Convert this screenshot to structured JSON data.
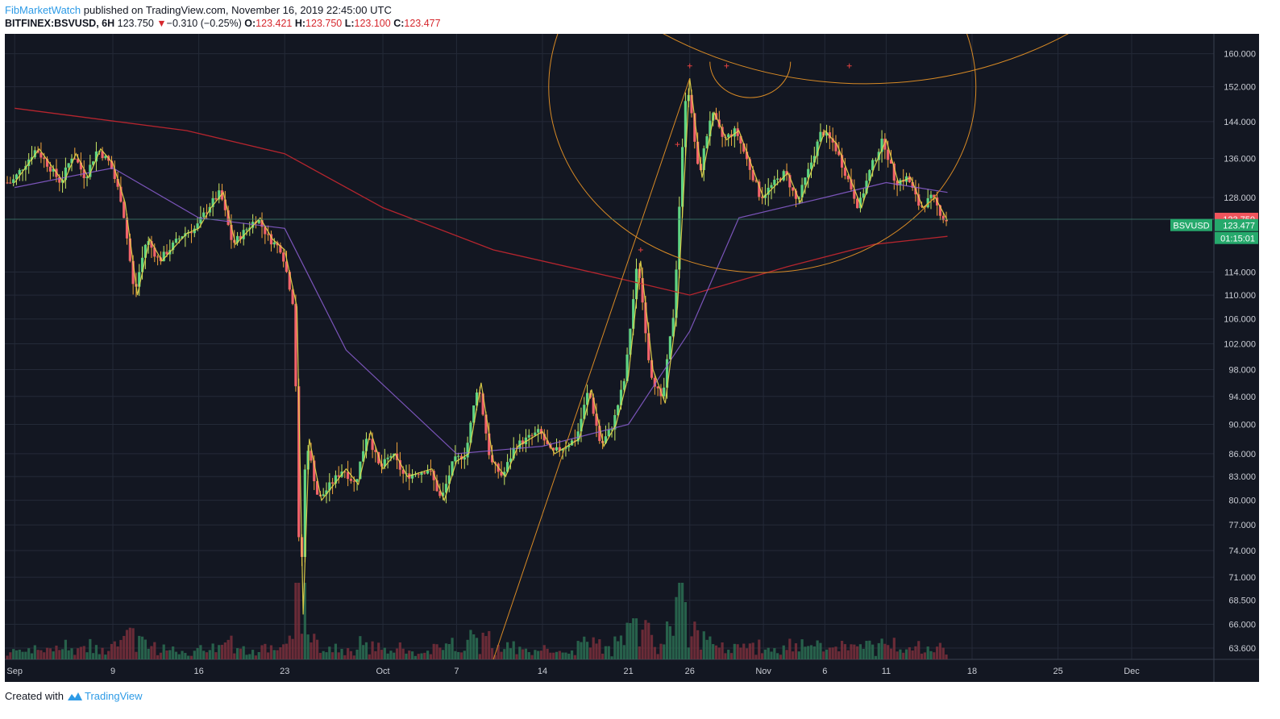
{
  "header": {
    "author": "FibMarketWatch",
    "published_text": "published on TradingView.com, November 16, 2019 22:45:00 UTC",
    "symbol": "BITFINEX:BSVUSD, 6H",
    "last": "123.750",
    "arrow": "▼",
    "change": "−0.310 (−0.25%)",
    "o_label": "O:",
    "o": "123.421",
    "h_label": "H:",
    "h": "123.750",
    "l_label": "L:",
    "l": "123.100",
    "c_label": "C:",
    "c": "123.477"
  },
  "footer": {
    "created_with": "Created with",
    "brand": "TradingView"
  },
  "colors": {
    "background": "#131722",
    "grid": "#242a38",
    "up": "#5fd583",
    "down": "#f2636a",
    "wick_up": "#c8e864",
    "wick_down": "#f3a53b",
    "zigzag": "#e8d84a",
    "ema_slow": "#b5252e",
    "ema_fast": "#8d5fd3",
    "fib_arc": "#d88a25",
    "price_tag_red": "#f0545c",
    "price_tag_green": "#26a96c"
  },
  "chart_data": {
    "type": "candlestick",
    "interval": "6H",
    "symbol": "BSVUSD",
    "x_tick_labels": [
      "Sep",
      "9",
      "16",
      "23",
      "Oct",
      "7",
      "14",
      "21",
      "26",
      "Nov",
      "6",
      "11",
      "18",
      "25",
      "Dec"
    ],
    "y_tick_labels": [
      "160.000",
      "152.000",
      "144.000",
      "136.000",
      "128.000",
      "114.000",
      "110.000",
      "106.000",
      "102.000",
      "98.000",
      "94.000",
      "90.000",
      "86.000",
      "83.000",
      "80.000",
      "77.000",
      "74.000",
      "71.000",
      "68.500",
      "66.000",
      "63.600"
    ],
    "y_scale": "log",
    "y_range": [
      62.5,
      165
    ],
    "price_tags": [
      {
        "label": "123.750",
        "value": 123.75,
        "color": "red"
      },
      {
        "label": "123.477",
        "value": 123.477,
        "color": "green"
      },
      {
        "label": "01:15:01",
        "kind": "countdown",
        "color": "green"
      }
    ],
    "series_tag": "BSVUSD",
    "price_path": [
      [
        "Sep 1",
        131
      ],
      [
        "Sep 3",
        138
      ],
      [
        "Sep 5",
        131
      ],
      [
        "Sep 6",
        137
      ],
      [
        "Sep 7",
        132
      ],
      [
        "Sep 8",
        138
      ],
      [
        "Sep 9",
        135
      ],
      [
        "Sep 10",
        127
      ],
      [
        "Sep 11",
        110
      ],
      [
        "Sep 12",
        120
      ],
      [
        "Sep 13",
        116
      ],
      [
        "Sep 15",
        121
      ],
      [
        "Sep 16",
        122
      ],
      [
        "Sep 17",
        126
      ],
      [
        "Sep 18",
        129
      ],
      [
        "Sep 19",
        119
      ],
      [
        "Sep 21",
        124
      ],
      [
        "Sep 22",
        120
      ],
      [
        "Sep 23",
        118
      ],
      [
        "Sep 24",
        108
      ],
      [
        "Sep 24 12:00",
        67
      ],
      [
        "Sep 25",
        88
      ],
      [
        "Sep 26",
        80
      ],
      [
        "Sep 28",
        84
      ],
      [
        "Sep 29",
        82
      ],
      [
        "Sep 30",
        89
      ],
      [
        "Oct 1",
        84
      ],
      [
        "Oct 2",
        86
      ],
      [
        "Oct 3",
        83
      ],
      [
        "Oct 5",
        84
      ],
      [
        "Oct 6",
        80
      ],
      [
        "Oct 7",
        85
      ],
      [
        "Oct 8",
        86
      ],
      [
        "Oct 9",
        96
      ],
      [
        "Oct 10",
        85
      ],
      [
        "Oct 11",
        83
      ],
      [
        "Oct 12",
        87
      ],
      [
        "Oct 14",
        89
      ],
      [
        "Oct 15",
        86
      ],
      [
        "Oct 17",
        88
      ],
      [
        "Oct 18",
        95
      ],
      [
        "Oct 19",
        87
      ],
      [
        "Oct 20",
        90
      ],
      [
        "Oct 21",
        97
      ],
      [
        "Oct 22",
        116
      ],
      [
        "Oct 23",
        98
      ],
      [
        "Oct 24",
        93
      ],
      [
        "Oct 25",
        108
      ],
      [
        "Oct 26",
        154
      ],
      [
        "Oct 27",
        132
      ],
      [
        "Oct 28",
        146
      ],
      [
        "Oct 29",
        140
      ],
      [
        "Oct 30",
        142
      ],
      [
        "Nov 1",
        128
      ],
      [
        "Nov 3",
        133
      ],
      [
        "Nov 4",
        127
      ],
      [
        "Nov 5",
        134
      ],
      [
        "Nov 6",
        142
      ],
      [
        "Nov 7",
        139
      ],
      [
        "Nov 9",
        126
      ],
      [
        "Nov 10",
        134
      ],
      [
        "Nov 11",
        140
      ],
      [
        "Nov 12",
        131
      ],
      [
        "Nov 13",
        132
      ],
      [
        "Nov 14",
        126
      ],
      [
        "Nov 15",
        128
      ],
      [
        "Nov 16",
        123.477
      ]
    ],
    "ema_slow_path": [
      [
        "Sep 1",
        147
      ],
      [
        "Sep 15",
        142
      ],
      [
        "Sep 23",
        137
      ],
      [
        "Oct 1",
        126
      ],
      [
        "Oct 10",
        118
      ],
      [
        "Oct 20",
        113
      ],
      [
        "Oct 26",
        110
      ],
      [
        "Nov 3",
        115
      ],
      [
        "Nov 10",
        119
      ],
      [
        "Nov 16",
        120.5
      ]
    ],
    "ema_fast_path": [
      [
        "Sep 1",
        130
      ],
      [
        "Sep 9",
        134
      ],
      [
        "Sep 16",
        124
      ],
      [
        "Sep 23",
        122
      ],
      [
        "Sep 28",
        101
      ],
      [
        "Oct 7",
        86
      ],
      [
        "Oct 14",
        87
      ],
      [
        "Oct 21",
        90
      ],
      [
        "Oct 26",
        104
      ],
      [
        "Oct 30",
        124
      ],
      [
        "Nov 6",
        128
      ],
      [
        "Nov 11",
        131
      ],
      [
        "Nov 16",
        129
      ]
    ],
    "fib_trend_line": [
      [
        "Oct 10",
        62.5
      ],
      [
        "Oct 26",
        154
      ]
    ]
  }
}
